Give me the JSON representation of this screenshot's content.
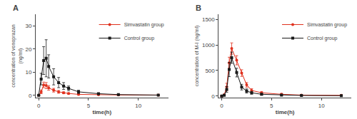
{
  "chart_data": [
    {
      "type": "line",
      "title": "A",
      "xlabel": "time(h)",
      "ylabel": "concentration of vonoprazan\n(ng/ml)",
      "xlim": [
        -0.3,
        13
      ],
      "ylim": [
        -1,
        35
      ],
      "xticks": [
        0,
        5,
        10
      ],
      "yticks": [
        0,
        10,
        20,
        30
      ],
      "grid": false,
      "legend": "upper right",
      "x": [
        0,
        0.25,
        0.5,
        0.75,
        1,
        1.5,
        2,
        2.5,
        3,
        4,
        6,
        8,
        12
      ],
      "series": [
        {
          "name": "Simvastatin group",
          "color": "#e0311e",
          "marker": "circle",
          "values": [
            0,
            1.5,
            4.5,
            4.2,
            3.2,
            2.2,
            1.5,
            1.1,
            0.8,
            0.4,
            0.2,
            0.15,
            0.1
          ],
          "yerr": [
            0,
            0.8,
            1.2,
            1.3,
            1.0,
            0.8,
            0.6,
            0.4,
            0.3,
            0.2,
            0.1,
            0.08,
            0.05
          ]
        },
        {
          "name": "Control group",
          "color": "#1a1a1a",
          "marker": "square",
          "values": [
            0,
            7.0,
            15.0,
            16.0,
            12.5,
            8.0,
            5.5,
            4.0,
            3.0,
            1.5,
            0.7,
            0.3,
            0.1
          ],
          "yerr": [
            0,
            2.5,
            6.0,
            8.0,
            5.0,
            3.5,
            2.2,
            1.5,
            1.0,
            0.7,
            0.3,
            0.15,
            0.05
          ]
        }
      ]
    },
    {
      "type": "line",
      "title": "B",
      "xlabel": "time(h)",
      "ylabel": "concentration of M-I (ng/ml)",
      "xlim": [
        -0.3,
        13
      ],
      "ylim": [
        -30,
        1600
      ],
      "xticks": [
        0,
        5,
        10
      ],
      "yticks": [
        0,
        500,
        1000,
        1500
      ],
      "grid": false,
      "legend": "upper right",
      "x": [
        0,
        0.25,
        0.5,
        0.75,
        1,
        1.5,
        2,
        2.5,
        3,
        4,
        6,
        8,
        12
      ],
      "series": [
        {
          "name": "Simvastatin group",
          "color": "#e0311e",
          "marker": "circle",
          "values": [
            0,
            25,
            180,
            650,
            930,
            700,
            450,
            220,
            110,
            65,
            35,
            20,
            15
          ],
          "yerr": [
            0,
            12,
            70,
            110,
            110,
            90,
            65,
            45,
            35,
            25,
            15,
            10,
            8
          ]
        },
        {
          "name": "Control group",
          "color": "#1a1a1a",
          "marker": "square",
          "values": [
            0,
            15,
            130,
            520,
            750,
            460,
            175,
            100,
            65,
            35,
            20,
            12,
            8
          ],
          "yerr": [
            0,
            8,
            55,
            140,
            110,
            85,
            55,
            40,
            28,
            18,
            10,
            6,
            4
          ]
        }
      ]
    }
  ]
}
